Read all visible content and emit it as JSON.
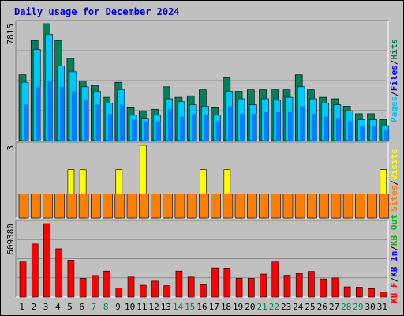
{
  "title": "Daily usage for December 2024",
  "colors": {
    "pages": "#0080ff",
    "files": "#00ffff",
    "hits": "#00805c",
    "visits": "#ffff00",
    "sites": "#ff8000",
    "kb_out": "#00c000",
    "kb_in": "#0000ff",
    "kb_f": "#ff0000",
    "day_weekday": "#00805c",
    "day_weekend": "#00805c"
  },
  "chart_data": [
    {
      "type": "bar",
      "name": "hits-files-pages",
      "ymax_label": "7815",
      "ylim": [
        0,
        7815
      ],
      "legend": [
        {
          "label": "Pages",
          "color": "#00c0ff"
        },
        {
          "label": "Files",
          "color": "#0000ff"
        },
        {
          "label": "Hits",
          "color": "#00805c"
        }
      ],
      "separator": "/",
      "series": [
        {
          "name": "Hits",
          "values": [
            4400,
            6700,
            7815,
            6700,
            5500,
            4000,
            3700,
            2900,
            3900,
            2200,
            2000,
            2100,
            3600,
            2900,
            3000,
            3400,
            2200,
            4200,
            3300,
            3400,
            3400,
            3400,
            3400,
            4400,
            3400,
            2900,
            2800,
            2300,
            1800,
            1800,
            1400
          ]
        },
        {
          "name": "Files",
          "values": [
            3900,
            6100,
            7100,
            5000,
            4600,
            3600,
            3300,
            2500,
            3400,
            1700,
            1500,
            1700,
            2800,
            2600,
            2400,
            2300,
            1700,
            3300,
            2800,
            2400,
            2800,
            2700,
            2900,
            3600,
            2800,
            2500,
            2400,
            2000,
            1400,
            1400,
            1000
          ]
        },
        {
          "name": "Pages",
          "values": [
            2400,
            3600,
            4000,
            3600,
            3300,
            2700,
            2400,
            1800,
            2400,
            1400,
            1300,
            1300,
            2100,
            1600,
            1800,
            1700,
            1300,
            2300,
            1800,
            1800,
            1900,
            1900,
            1900,
            2300,
            1800,
            1600,
            1500,
            1300,
            1000,
            1000,
            700
          ]
        }
      ]
    },
    {
      "type": "bar",
      "name": "visits-sites",
      "ymax_label": "3",
      "ylim": [
        0,
        3
      ],
      "legend": [
        {
          "label": "Sites",
          "color": "#ff8000"
        },
        {
          "label": "Visits",
          "color": "#ffff00"
        }
      ],
      "separator": "/",
      "series": [
        {
          "name": "Visits",
          "values": [
            1,
            1,
            1,
            1,
            2,
            2,
            1,
            1,
            2,
            1,
            3,
            1,
            1,
            1,
            1,
            2,
            1,
            2,
            1,
            1,
            1,
            1,
            1,
            1,
            1,
            1,
            1,
            1,
            1,
            1,
            2
          ]
        },
        {
          "name": "Sites",
          "values": [
            1,
            1,
            1,
            1,
            1,
            1,
            1,
            1,
            1,
            1,
            1,
            1,
            1,
            1,
            1,
            1,
            1,
            1,
            1,
            1,
            1,
            1,
            1,
            1,
            1,
            1,
            1,
            1,
            1,
            1,
            1
          ]
        }
      ]
    },
    {
      "type": "bar",
      "name": "kbytes",
      "ymax_label": "609380",
      "ylim": [
        0,
        609380
      ],
      "legend": [
        {
          "label": "KB F",
          "color": "#ff0000"
        },
        {
          "label": "KB In",
          "color": "#0000ff"
        },
        {
          "label": "KB Out",
          "color": "#00c000"
        }
      ],
      "separator": "/",
      "series": [
        {
          "name": "KB F",
          "values": [
            290000,
            440000,
            609380,
            400000,
            305000,
            155000,
            178000,
            215000,
            75000,
            165000,
            98000,
            132000,
            95000,
            215000,
            165000,
            103000,
            242000,
            240000,
            155000,
            155000,
            190000,
            290000,
            180000,
            195000,
            212000,
            150000,
            158000,
            85000,
            82000,
            70000,
            42000
          ]
        }
      ]
    }
  ],
  "days": [
    "1",
    "2",
    "3",
    "4",
    "5",
    "6",
    "7",
    "8",
    "9",
    "10",
    "11",
    "12",
    "13",
    "14",
    "15",
    "16",
    "17",
    "18",
    "19",
    "20",
    "21",
    "22",
    "23",
    "24",
    "25",
    "26",
    "27",
    "28",
    "29",
    "30",
    "31"
  ]
}
